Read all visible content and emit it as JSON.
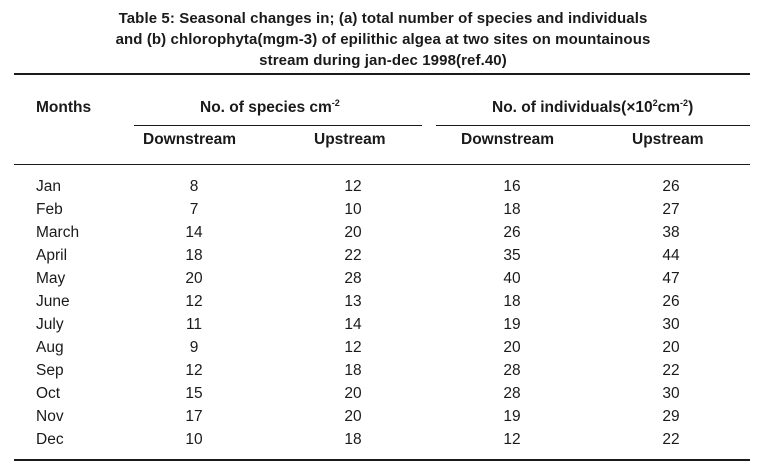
{
  "caption": {
    "line1": "Table 5: Seasonal  changes in;  (a) total  number of  species and  individuals",
    "line2": "and (b) chlorophyta(mgm-3) of  epilithic algea  at  two  sites  on  mountainous",
    "line3": "stream  during  jan-dec 1998(ref.40)"
  },
  "headers": {
    "months": "Months",
    "species_group": "No. of species cm",
    "species_group_sup": "-2",
    "individuals_group": "No. of individuals(×10",
    "individuals_group_sup1": "2",
    "individuals_group_mid": "cm",
    "individuals_group_sup2": "-2",
    "individuals_group_end": ")",
    "downstream_1": "Downstream",
    "upstream_1": "Upstream",
    "downstream_2": "Downstream",
    "upstream_2": "Upstream"
  },
  "rows": [
    {
      "month": "Jan",
      "sp_down": "8",
      "sp_up": "12",
      "ind_down": "16",
      "ind_up": "26"
    },
    {
      "month": "Feb",
      "sp_down": "7",
      "sp_up": "10",
      "ind_down": "18",
      "ind_up": "27"
    },
    {
      "month": "March",
      "sp_down": "14",
      "sp_up": "20",
      "ind_down": "26",
      "ind_up": "38"
    },
    {
      "month": "April",
      "sp_down": "18",
      "sp_up": "22",
      "ind_down": "35",
      "ind_up": "44"
    },
    {
      "month": "May",
      "sp_down": "20",
      "sp_up": "28",
      "ind_down": "40",
      "ind_up": "47"
    },
    {
      "month": "June",
      "sp_down": "12",
      "sp_up": "13",
      "ind_down": "18",
      "ind_up": "26"
    },
    {
      "month": "July",
      "sp_down": "11",
      "sp_up": "14",
      "ind_down": "19",
      "ind_up": "30"
    },
    {
      "month": "Aug",
      "sp_down": "9",
      "sp_up": "12",
      "ind_down": "20",
      "ind_up": "20"
    },
    {
      "month": "Sep",
      "sp_down": "12",
      "sp_up": "18",
      "ind_down": "28",
      "ind_up": "22"
    },
    {
      "month": "Oct",
      "sp_down": "15",
      "sp_up": "20",
      "ind_down": "28",
      "ind_up": "30"
    },
    {
      "month": "Nov",
      "sp_down": "17",
      "sp_up": "20",
      "ind_down": "19",
      "ind_up": "29"
    },
    {
      "month": "Dec",
      "sp_down": "10",
      "sp_up": "18",
      "ind_down": "12",
      "ind_up": "22"
    }
  ]
}
